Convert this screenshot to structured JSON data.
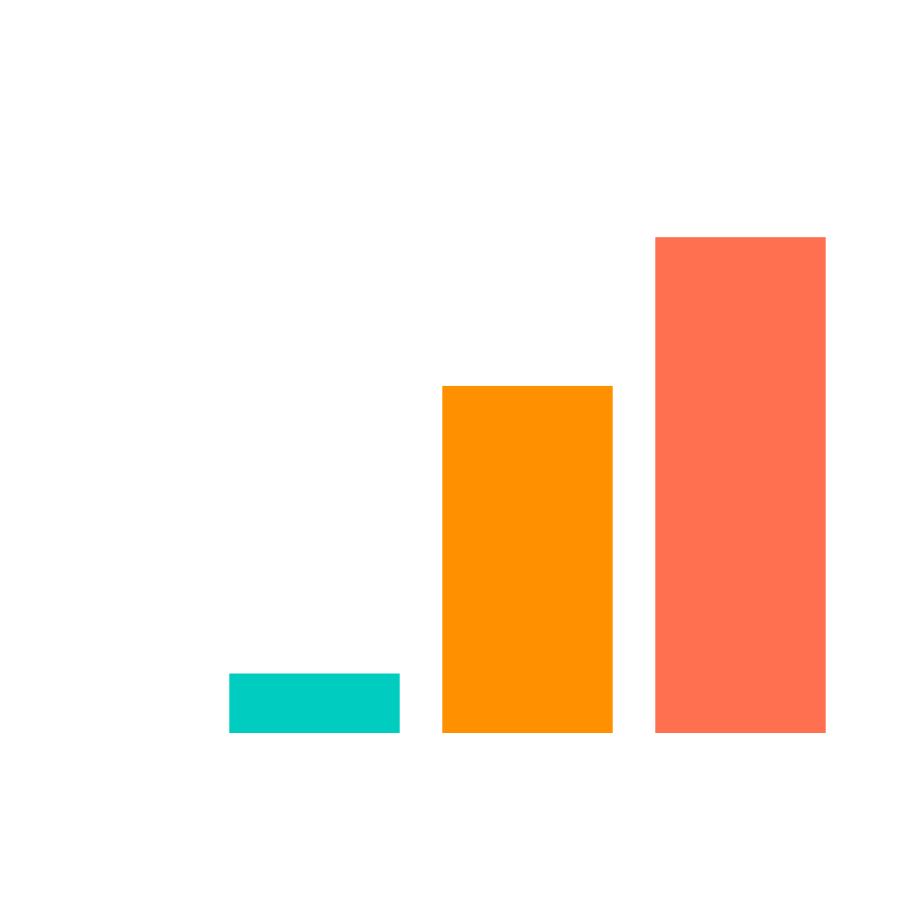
{
  "chart_data": {
    "type": "bar",
    "categories": [
      null,
      null,
      null
    ],
    "values": [
      1.2,
      7,
      10
    ],
    "colors": [
      "#00ccc0",
      "#ff9100",
      "#ff7050"
    ],
    "ylim": [
      0,
      12
    ]
  }
}
